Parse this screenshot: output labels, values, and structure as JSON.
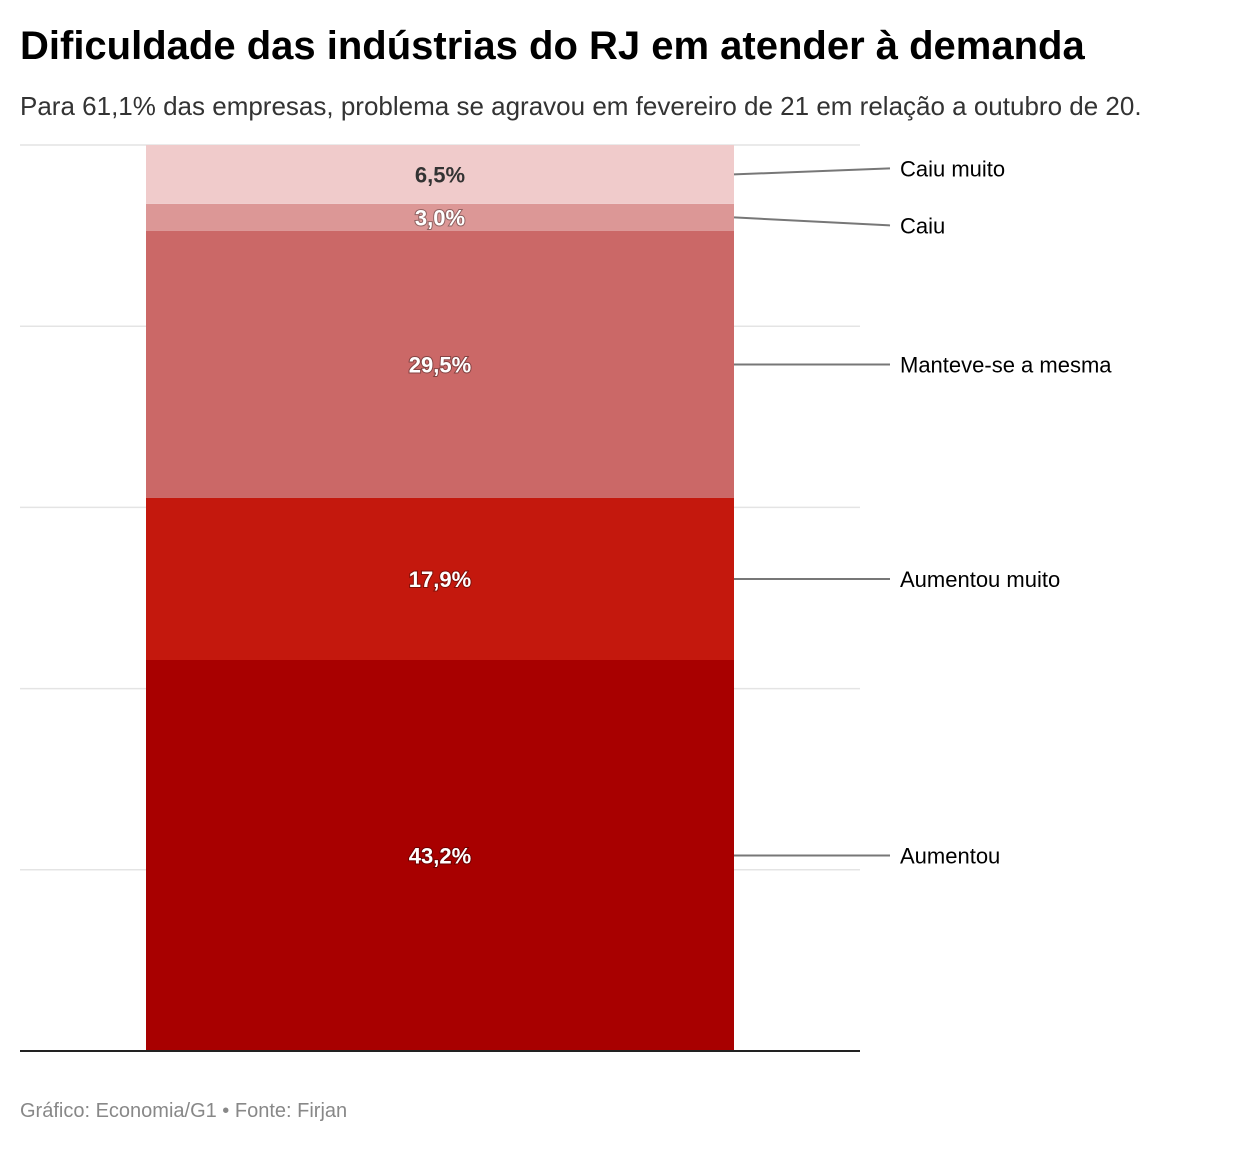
{
  "title": "Dificuldade das indústrias do RJ em atender à demanda",
  "subtitle": "Para 61,1% das empresas, problema se agravou em fevereiro de 21 em relação a outubro de 20.",
  "footer": "Gráfico: Economia/G1 • Fonte: Firjan",
  "chart_data": {
    "type": "bar",
    "stacked": true,
    "percent": true,
    "ylim": [
      0,
      100
    ],
    "grid": true,
    "series": [
      {
        "name": "Aumentou",
        "value": 43.2,
        "label": "43,2%",
        "color": "#a80000"
      },
      {
        "name": "Aumentou muito",
        "value": 17.9,
        "label": "17,9%",
        "color": "#c4180d"
      },
      {
        "name": "Manteve-se a mesma",
        "value": 29.5,
        "label": "29,5%",
        "color": "#cb6867"
      },
      {
        "name": "Caiu",
        "value": 3.0,
        "label": "3,0%",
        "color": "#dc9796"
      },
      {
        "name": "Caiu muito",
        "value": 6.5,
        "label": "6,5%",
        "color": "#f0cbcb"
      }
    ]
  }
}
